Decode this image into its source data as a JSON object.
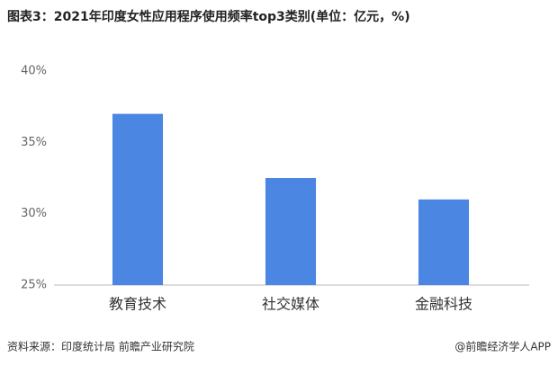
{
  "chart_data": {
    "type": "bar",
    "title": "图表3：2021年印度女性应用程序使用频率top3类别(单位：亿元，%)",
    "categories": [
      "教育技术",
      "社交媒体",
      "金融科技"
    ],
    "values": [
      37,
      32.5,
      31
    ],
    "color": "#4a86e2",
    "ylim": [
      25,
      40
    ],
    "yticks": [
      {
        "value": 25,
        "label": "25%"
      },
      {
        "value": 30,
        "label": "30%"
      },
      {
        "value": 35,
        "label": "35%"
      },
      {
        "value": 40,
        "label": "40%"
      }
    ],
    "grid": false,
    "source": "资料来源：印度统计局 前瞻产业研究院",
    "credit": "@前瞻经济学人APP"
  }
}
